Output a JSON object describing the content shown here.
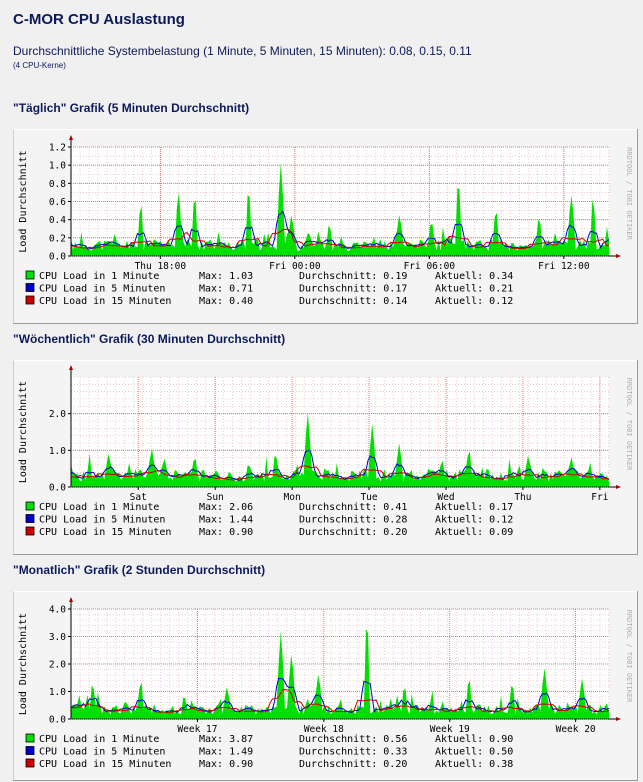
{
  "page": {
    "title": "C-MOR CPU Auslastung",
    "subtitle_prefix": "Durchschnittliche Systembelastung (1 Minute, 5 Minuten, 15 Minuten): ",
    "subtitle_values": "0.08, 0.15, 0.11",
    "cores": "(4 CPU-Kerne)"
  },
  "colors": {
    "one_minute": "#00e000",
    "five_minutes": "#0000cc",
    "fifteen_minutes": "#cc0000",
    "axis": "#000000",
    "grid_minor": "#e3a8a8",
    "grid_major": "#e06060"
  },
  "watermark": "RRDTOOL / TOBI OETIKER",
  "chart_data": [
    {
      "type": "area",
      "section_title": "\"Täglich\" Grafik (5 Minuten Durchschnitt)",
      "ylabel": "Load Durchschnitt",
      "ylim": [
        0,
        1.2
      ],
      "yticks": [
        "0.0",
        "0.2",
        "0.4",
        "0.6",
        "0.8",
        "1.0",
        "1.2"
      ],
      "xticks": [
        {
          "label": "Thu 18:00",
          "pos": 0.166
        },
        {
          "label": "Fri 00:00",
          "pos": 0.416
        },
        {
          "label": "Fri 06:00",
          "pos": 0.666
        },
        {
          "label": "Fri 12:00",
          "pos": 0.916
        }
      ],
      "series": [
        {
          "name": "CPU Load in 1 Minute",
          "key": "one_minute",
          "max": "1.03",
          "avg": "0.19",
          "cur": "0.34"
        },
        {
          "name": "CPU Load in 5 Minuten",
          "key": "five_minutes",
          "max": "0.71",
          "avg": "0.17",
          "cur": "0.21"
        },
        {
          "name": "CPU Load in 15 Minuten",
          "key": "fifteen_minutes",
          "max": "0.40",
          "avg": "0.14",
          "cur": "0.12"
        }
      ],
      "base": 0.12,
      "spikes": [
        {
          "at": 0.13,
          "v": 0.62
        },
        {
          "at": 0.2,
          "v": 0.75
        },
        {
          "at": 0.23,
          "v": 0.72
        },
        {
          "at": 0.33,
          "v": 0.8
        },
        {
          "at": 0.39,
          "v": 1.03
        },
        {
          "at": 0.41,
          "v": 0.48
        },
        {
          "at": 0.48,
          "v": 0.38
        },
        {
          "at": 0.61,
          "v": 0.45
        },
        {
          "at": 0.67,
          "v": 0.42
        },
        {
          "at": 0.72,
          "v": 0.9
        },
        {
          "at": 0.79,
          "v": 0.55
        },
        {
          "at": 0.87,
          "v": 0.46
        },
        {
          "at": 0.93,
          "v": 0.7
        },
        {
          "at": 0.97,
          "v": 0.68
        }
      ],
      "seed": 11
    },
    {
      "type": "area",
      "section_title": "\"Wöchentlich\" Grafik (30 Minuten Durchschnitt)",
      "ylabel": "Load Durchschnitt",
      "ylim": [
        0,
        3.0
      ],
      "yticks": [
        "0.0",
        "1.0",
        "2.0"
      ],
      "xticks": [
        {
          "label": "Sat",
          "pos": 0.125
        },
        {
          "label": "Sun",
          "pos": 0.268
        },
        {
          "label": "Mon",
          "pos": 0.411
        },
        {
          "label": "Tue",
          "pos": 0.554
        },
        {
          "label": "Wed",
          "pos": 0.697
        },
        {
          "label": "Thu",
          "pos": 0.84
        },
        {
          "label": "Fri",
          "pos": 0.983
        }
      ],
      "series": [
        {
          "name": "CPU Load in 1 Minute",
          "key": "one_minute",
          "max": "2.06",
          "avg": "0.41",
          "cur": "0.17"
        },
        {
          "name": "CPU Load in 5 Minuten",
          "key": "five_minutes",
          "max": "1.44",
          "avg": "0.28",
          "cur": "0.12"
        },
        {
          "name": "CPU Load in 15 Minuten",
          "key": "fifteen_minutes",
          "max": "0.90",
          "avg": "0.20",
          "cur": "0.09"
        }
      ],
      "base": 0.32,
      "spikes": [
        {
          "at": 0.07,
          "v": 0.95
        },
        {
          "at": 0.15,
          "v": 1.1
        },
        {
          "at": 0.17,
          "v": 0.6
        },
        {
          "at": 0.23,
          "v": 0.9
        },
        {
          "at": 0.33,
          "v": 0.7
        },
        {
          "at": 0.38,
          "v": 1.0
        },
        {
          "at": 0.44,
          "v": 2.06
        },
        {
          "at": 0.56,
          "v": 1.75
        },
        {
          "at": 0.61,
          "v": 1.2
        },
        {
          "at": 0.69,
          "v": 0.8
        },
        {
          "at": 0.74,
          "v": 1.1
        },
        {
          "at": 0.85,
          "v": 0.9
        },
        {
          "at": 0.93,
          "v": 0.85
        }
      ],
      "seed": 23
    },
    {
      "type": "area",
      "section_title": "\"Monatlich\" Grafik (2 Stunden Durchschnitt)",
      "ylabel": "Load Durchschnitt",
      "ylim": [
        0,
        4.0
      ],
      "yticks": [
        "0.0",
        "1.0",
        "2.0",
        "3.0",
        "4.0"
      ],
      "xticks": [
        {
          "label": "Week 17",
          "pos": 0.235
        },
        {
          "label": "Week 18",
          "pos": 0.47
        },
        {
          "label": "Week 19",
          "pos": 0.704
        },
        {
          "label": "Week 20",
          "pos": 0.938
        }
      ],
      "series": [
        {
          "name": "CPU Load in 1 Minute",
          "key": "one_minute",
          "max": "3.87",
          "avg": "0.56",
          "cur": "0.90"
        },
        {
          "name": "CPU Load in 5 Minuten",
          "key": "five_minutes",
          "max": "1.49",
          "avg": "0.33",
          "cur": "0.50"
        },
        {
          "name": "CPU Load in 15 Minuten",
          "key": "fifteen_minutes",
          "max": "0.90",
          "avg": "0.20",
          "cur": "0.38"
        }
      ],
      "base": 0.35,
      "spikes": [
        {
          "at": 0.04,
          "v": 1.4
        },
        {
          "at": 0.13,
          "v": 1.5
        },
        {
          "at": 0.21,
          "v": 0.9
        },
        {
          "at": 0.29,
          "v": 1.2
        },
        {
          "at": 0.39,
          "v": 3.2
        },
        {
          "at": 0.41,
          "v": 2.5
        },
        {
          "at": 0.46,
          "v": 1.7
        },
        {
          "at": 0.55,
          "v": 3.87
        },
        {
          "at": 0.62,
          "v": 1.3
        },
        {
          "at": 0.74,
          "v": 1.6
        },
        {
          "at": 0.82,
          "v": 1.4
        },
        {
          "at": 0.88,
          "v": 1.9
        },
        {
          "at": 0.95,
          "v": 1.5
        }
      ],
      "seed": 37
    }
  ]
}
